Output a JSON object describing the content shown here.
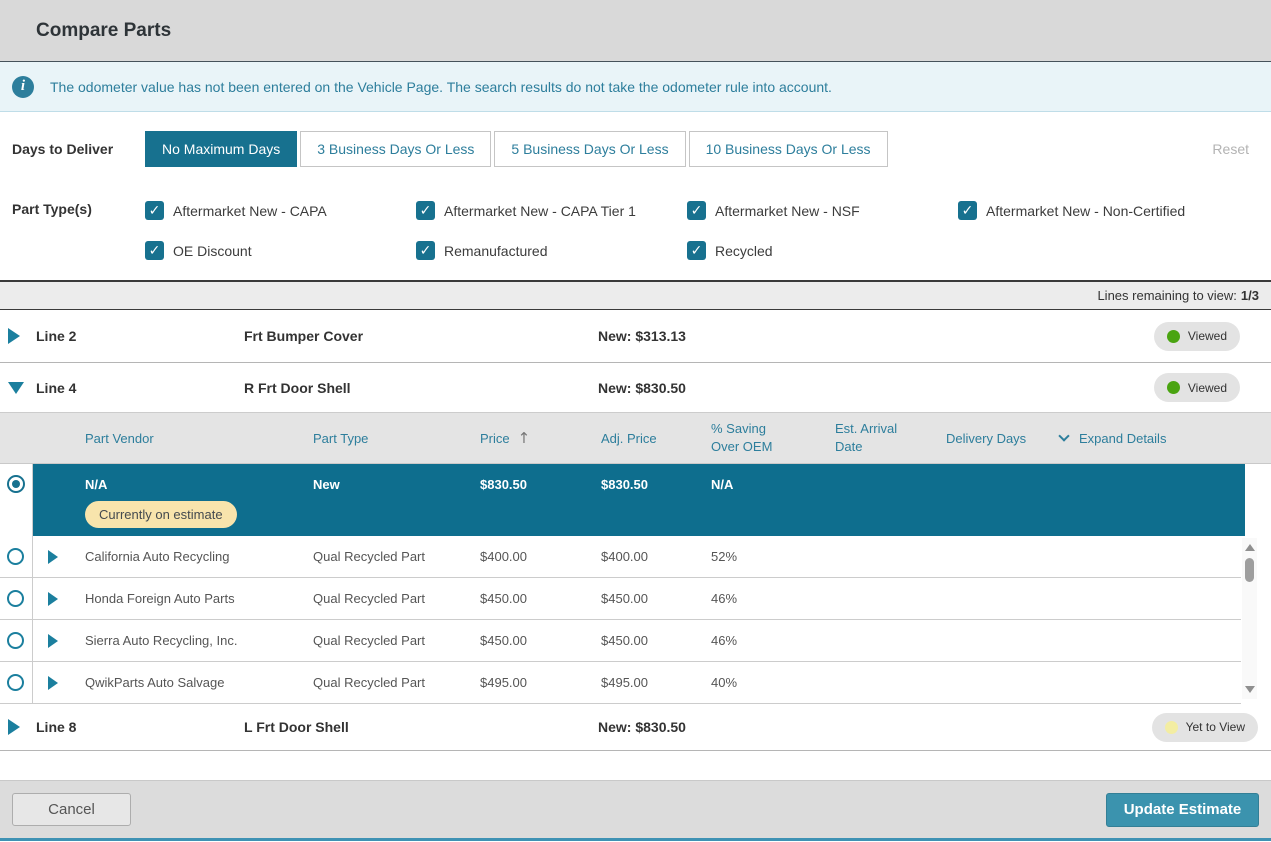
{
  "header": {
    "title": "Compare Parts"
  },
  "banner": {
    "icon": "info-icon",
    "text": "The odometer value has not been entered on the Vehicle Page. The search results do not take the odometer rule into account."
  },
  "filters": {
    "days_label": "Days to Deliver",
    "days_options": [
      {
        "label": "No Maximum Days",
        "selected": true
      },
      {
        "label": "3 Business Days Or Less",
        "selected": false
      },
      {
        "label": "5 Business Days Or Less",
        "selected": false
      },
      {
        "label": "10 Business Days Or Less",
        "selected": false
      }
    ],
    "reset_label": "Reset",
    "part_types_label": "Part Type(s)",
    "part_types": [
      {
        "label": "Aftermarket New - CAPA",
        "checked": true
      },
      {
        "label": "Aftermarket New - CAPA Tier 1",
        "checked": true
      },
      {
        "label": "Aftermarket New - NSF",
        "checked": true
      },
      {
        "label": "Aftermarket New - Non-Certified",
        "checked": true
      },
      {
        "label": "OE Discount",
        "checked": true
      },
      {
        "label": "Remanufactured",
        "checked": true
      },
      {
        "label": "Recycled",
        "checked": true
      }
    ]
  },
  "lines_bar": {
    "label": "Lines remaining to view:",
    "value": "1/3"
  },
  "lines": [
    {
      "id": "Line 2",
      "part": "Frt Bumper Cover",
      "price_label": "New: $313.13",
      "status": "Viewed",
      "expanded": false
    },
    {
      "id": "Line 4",
      "part": "R Frt Door Shell",
      "price_label": "New: $830.50",
      "status": "Viewed",
      "expanded": true
    },
    {
      "id": "Line 8",
      "part": "L Frt Door Shell",
      "price_label": "New: $830.50",
      "status": "Yet to View",
      "expanded": false
    }
  ],
  "table": {
    "headers": {
      "vendor": "Part Vendor",
      "part_type": "Part Type",
      "price": "Price",
      "sort_icon": "sort-ascending-arrow",
      "adj_price": "Adj. Price",
      "saving_line1": "% Saving",
      "saving_line2": "Over OEM",
      "arrival_line1": "Est. Arrival",
      "arrival_line2": "Date",
      "delivery": "Delivery Days",
      "expand": "Expand Details"
    },
    "selected_row": {
      "vendor": "N/A",
      "part_type": "New",
      "price": "$830.50",
      "adj_price": "$830.50",
      "saving": "N/A",
      "badge": "Currently on estimate"
    },
    "rows": [
      {
        "vendor": "California Auto Recycling",
        "part_type": "Qual Recycled Part",
        "price": "$400.00",
        "adj_price": "$400.00",
        "saving": "52%"
      },
      {
        "vendor": "Honda Foreign Auto Parts",
        "part_type": "Qual Recycled Part",
        "price": "$450.00",
        "adj_price": "$450.00",
        "saving": "46%"
      },
      {
        "vendor": "Sierra Auto Recycling, Inc.",
        "part_type": "Qual Recycled Part",
        "price": "$450.00",
        "adj_price": "$450.00",
        "saving": "46%"
      },
      {
        "vendor": "QwikParts Auto Salvage",
        "part_type": "Qual Recycled Part",
        "price": "$495.00",
        "adj_price": "$495.00",
        "saving": "40%"
      }
    ]
  },
  "footer": {
    "cancel_label": "Cancel",
    "update_label": "Update Estimate"
  },
  "colors": {
    "accent_teal": "#17718f",
    "selected_row_teal": "#0e6e8e",
    "link_teal": "#2d7e9c",
    "update_button_teal": "#3b93ae",
    "badge_cream": "#f8e4ac",
    "viewed_green": "#4aa411",
    "yet_to_view_yellow": "#f3eda2"
  }
}
